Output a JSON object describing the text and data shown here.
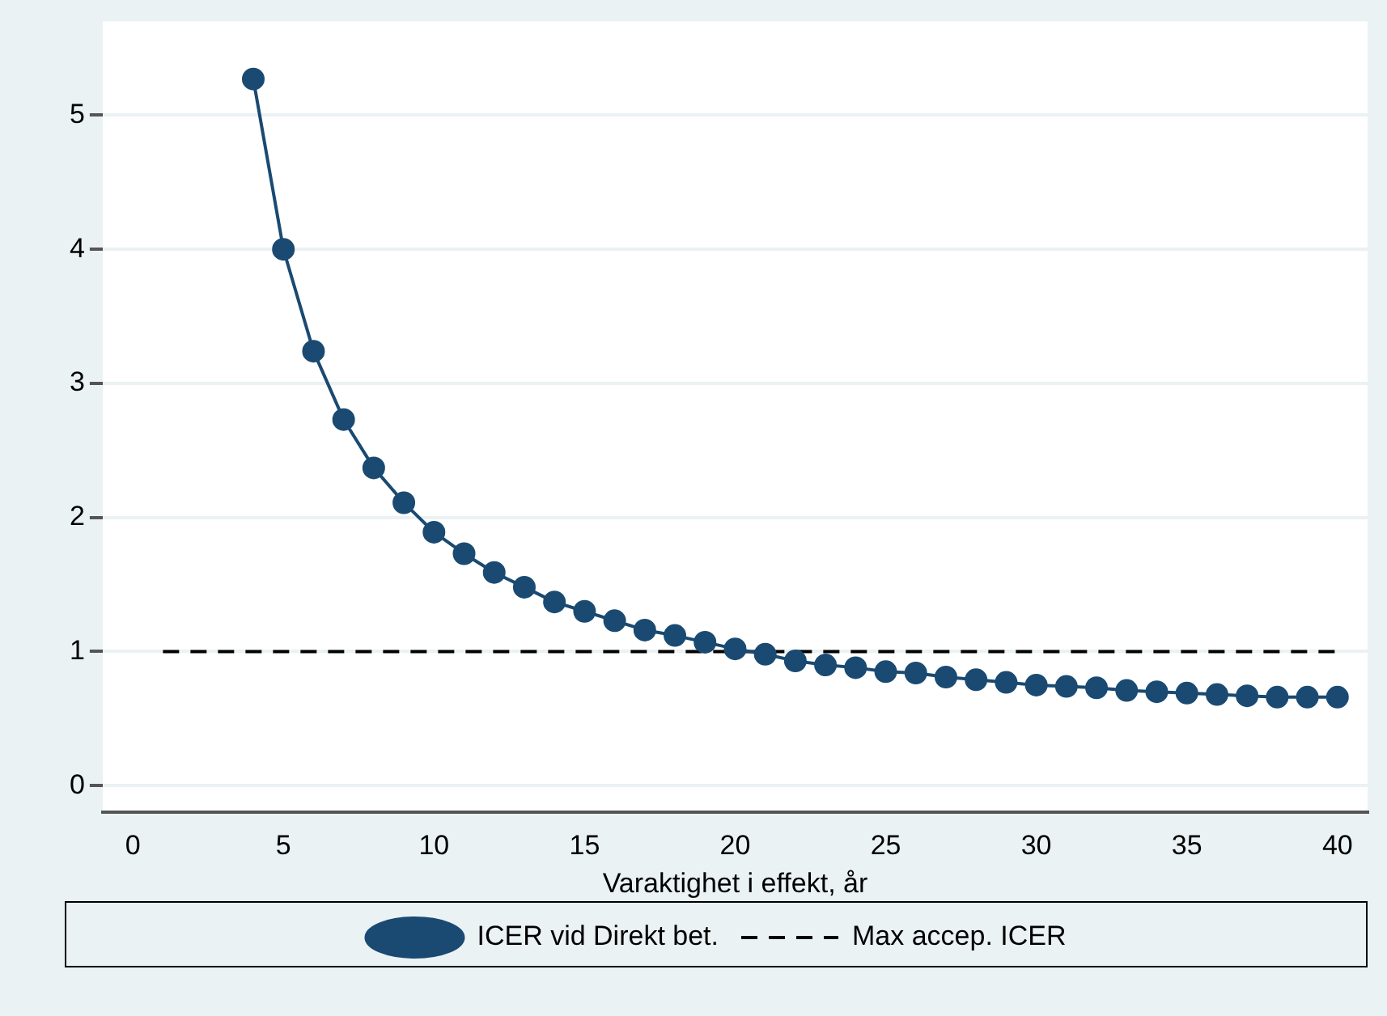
{
  "chart_data": {
    "type": "line",
    "xlabel": "Varaktighet i effekt, år",
    "xlim": [
      -1,
      41
    ],
    "xticks": [
      0,
      5,
      10,
      15,
      20,
      25,
      30,
      35,
      40
    ],
    "ylim": [
      -0.2,
      5.7
    ],
    "yticks": [
      0,
      1,
      2,
      3,
      4,
      5
    ],
    "grid": "y",
    "legend": "bottom",
    "series": [
      {
        "name": "ICER vid Direkt bet.",
        "color": "#1a4a72",
        "marker": "circle",
        "line_style": "solid",
        "x": [
          4,
          5,
          6,
          7,
          8,
          9,
          10,
          11,
          12,
          13,
          14,
          15,
          16,
          17,
          18,
          19,
          20,
          21,
          22,
          23,
          24,
          25,
          26,
          27,
          28,
          29,
          30,
          31,
          32,
          33,
          34,
          35,
          36,
          37,
          38,
          39,
          40
        ],
        "values": [
          5.27,
          4.0,
          3.24,
          2.73,
          2.37,
          2.11,
          1.89,
          1.73,
          1.59,
          1.48,
          1.37,
          1.3,
          1.23,
          1.16,
          1.12,
          1.07,
          1.02,
          0.98,
          0.93,
          0.9,
          0.88,
          0.85,
          0.84,
          0.81,
          0.79,
          0.77,
          0.75,
          0.74,
          0.73,
          0.71,
          0.7,
          0.69,
          0.68,
          0.67,
          0.66,
          0.66,
          0.66
        ]
      },
      {
        "name": "Max accep. ICER",
        "color": "#000000",
        "marker": "none",
        "line_style": "dashed",
        "x": [
          1,
          40
        ],
        "values": [
          1,
          1
        ]
      }
    ]
  }
}
